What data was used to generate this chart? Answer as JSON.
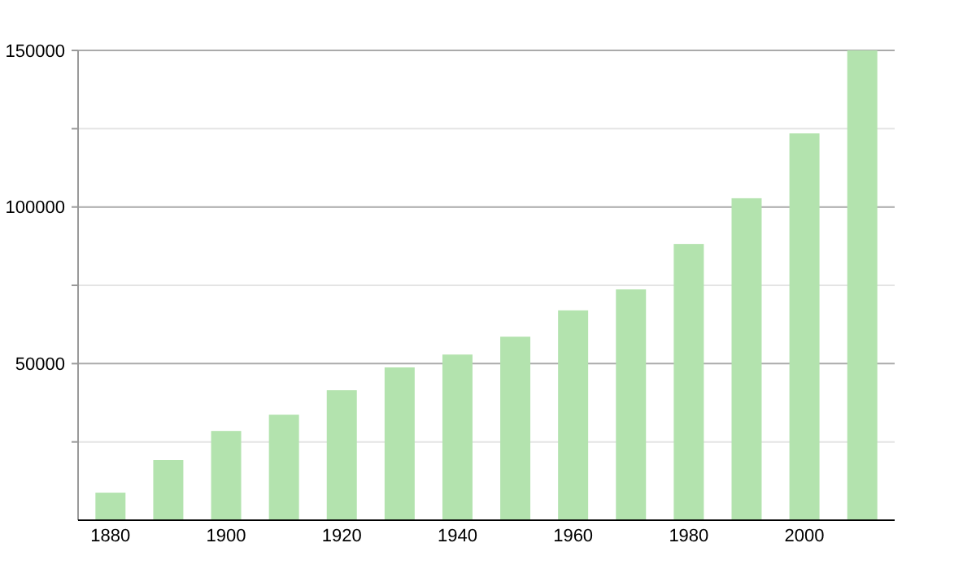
{
  "chart_data": {
    "type": "bar",
    "categories": [
      "1880",
      null,
      "1900",
      null,
      "1920",
      null,
      "1940",
      null,
      "1960",
      null,
      "1980",
      null,
      "2000",
      null
    ],
    "values": [
      8800,
      19200,
      28500,
      33700,
      41500,
      48800,
      52900,
      58600,
      67000,
      73700,
      88200,
      102800,
      123500,
      150000
    ],
    "color": "#b3e3ae",
    "ylim": [
      0,
      150000
    ],
    "yticks": [
      {
        "value": 25000,
        "label": null
      },
      50000,
      {
        "value": 75000,
        "label": null
      },
      100000,
      {
        "value": 125000,
        "label": null
      },
      150000
    ],
    "grid": "y"
  }
}
